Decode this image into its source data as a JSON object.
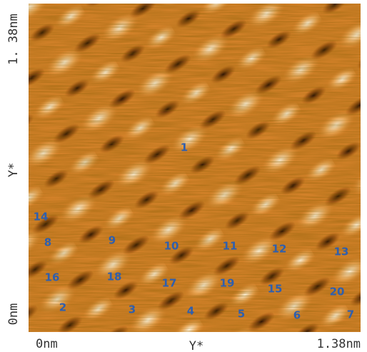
{
  "axes": {
    "y_top": "1. 38nm",
    "y_mid": "Y*",
    "y_bottom": "0nm",
    "x_left": "0nm",
    "x_mid": "Y*",
    "x_right": "1.38nm"
  },
  "labels": [
    "1",
    "14",
    "8",
    "9",
    "10",
    "11",
    "12",
    "13",
    "16",
    "18",
    "17",
    "19",
    "15",
    "20",
    "2",
    "3",
    "4",
    "5",
    "6",
    "7"
  ]
}
